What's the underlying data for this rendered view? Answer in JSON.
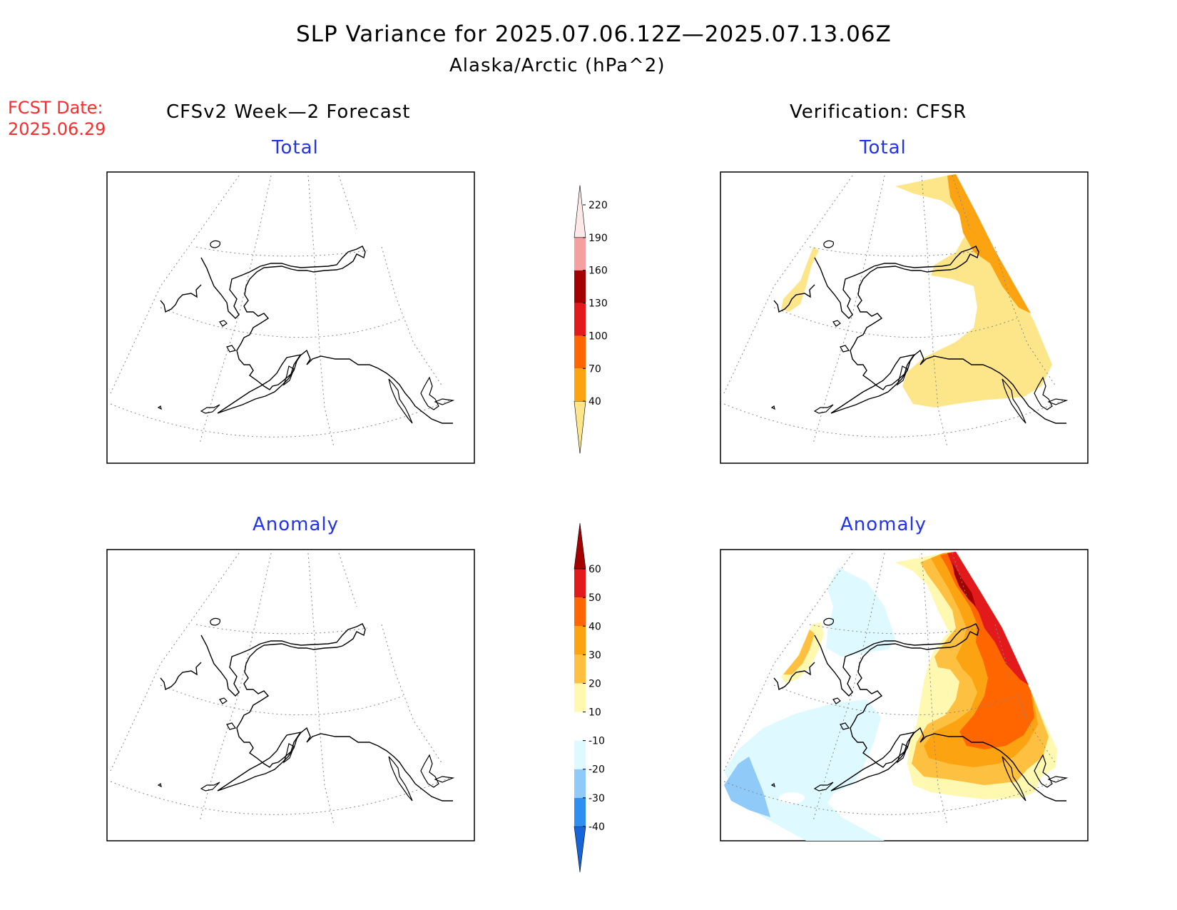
{
  "header": {
    "title": "SLP Variance for 2025.07.06.12Z—2025.07.13.06Z",
    "subtitle": "Alaska/Arctic (hPa^2)"
  },
  "fcst_date": {
    "label": "FCST Date:",
    "value": "2025.06.29"
  },
  "columns": {
    "left_title": "CFSv2 Week—2 Forecast",
    "right_title": "Verification: CFSR"
  },
  "panels": {
    "top_left": "Total",
    "top_right": "Total",
    "bottom_left": "Anomaly",
    "bottom_right": "Anomaly"
  },
  "colorbars": {
    "total": {
      "levels": [
        "40",
        "70",
        "100",
        "130",
        "160",
        "190",
        "220"
      ],
      "colors": [
        "#fde68a",
        "#fca311",
        "#ff6600",
        "#e31a1c",
        "#a50000",
        "#f4a0a0",
        "#fde8e8"
      ]
    },
    "anomaly": {
      "levels": [
        "-40",
        "-30",
        "-20",
        "-10",
        "10",
        "20",
        "30",
        "40",
        "50",
        "60"
      ],
      "colors": [
        "#1565d8",
        "#2f8ff0",
        "#8fcaf8",
        "#def9ff",
        "#ffffff",
        "#fff8b0",
        "#fdc040",
        "#fca311",
        "#ff6600",
        "#e31a1c",
        "#a50000"
      ]
    }
  }
}
